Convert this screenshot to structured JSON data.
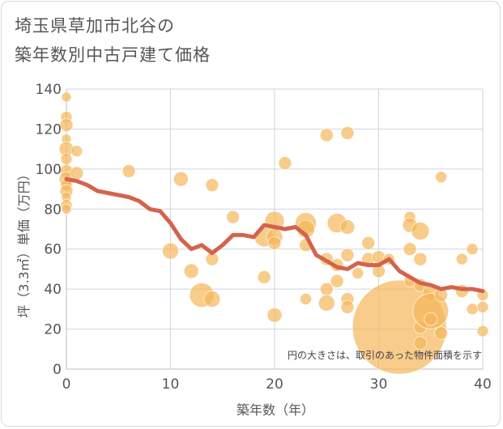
{
  "title_line1": "埼玉県草加市北谷の",
  "title_line2": "築年数別中古戸建て価格",
  "colors": {
    "bubble": "#f5b75a",
    "line": "#d4634c",
    "grid": "#ccd6e0",
    "text": "#555555"
  },
  "chart_data": {
    "type": "scatter",
    "title": "埼玉県草加市北谷の築年数別中古戸建て価格",
    "xlabel": "築年数（年）",
    "ylabel": "坪（3.3㎡）単価（万円）",
    "xlim": [
      0,
      40
    ],
    "ylim": [
      0,
      140
    ],
    "x_ticks": [
      0,
      10,
      20,
      30,
      40
    ],
    "y_ticks": [
      0,
      20,
      40,
      60,
      80,
      100,
      120,
      140
    ],
    "grid": true,
    "annotation": "円の大きさは、取引のあった物件面積を示す",
    "scatter_points": [
      {
        "x": 0,
        "y": 136,
        "size": 6
      },
      {
        "x": 0,
        "y": 126,
        "size": 7
      },
      {
        "x": 0,
        "y": 122,
        "size": 8
      },
      {
        "x": 0,
        "y": 115,
        "size": 6
      },
      {
        "x": 0,
        "y": 110,
        "size": 9
      },
      {
        "x": 0,
        "y": 105,
        "size": 7
      },
      {
        "x": 0,
        "y": 99,
        "size": 8
      },
      {
        "x": 0,
        "y": 95,
        "size": 9
      },
      {
        "x": 0,
        "y": 92,
        "size": 7
      },
      {
        "x": 0,
        "y": 89,
        "size": 8
      },
      {
        "x": 0,
        "y": 86,
        "size": 6
      },
      {
        "x": 0,
        "y": 82,
        "size": 7
      },
      {
        "x": 0,
        "y": 80,
        "size": 6
      },
      {
        "x": 1,
        "y": 109,
        "size": 7
      },
      {
        "x": 1,
        "y": 98,
        "size": 8
      },
      {
        "x": 6,
        "y": 99,
        "size": 8
      },
      {
        "x": 10,
        "y": 59,
        "size": 10
      },
      {
        "x": 11,
        "y": 95,
        "size": 9
      },
      {
        "x": 12,
        "y": 49,
        "size": 9
      },
      {
        "x": 13,
        "y": 37,
        "size": 15
      },
      {
        "x": 14,
        "y": 92,
        "size": 8
      },
      {
        "x": 14,
        "y": 55,
        "size": 8
      },
      {
        "x": 14,
        "y": 35,
        "size": 10
      },
      {
        "x": 16,
        "y": 76,
        "size": 8
      },
      {
        "x": 19,
        "y": 66,
        "size": 12
      },
      {
        "x": 19,
        "y": 46,
        "size": 8
      },
      {
        "x": 20,
        "y": 74,
        "size": 12
      },
      {
        "x": 20,
        "y": 66,
        "size": 10
      },
      {
        "x": 20,
        "y": 63,
        "size": 8
      },
      {
        "x": 20,
        "y": 27,
        "size": 9
      },
      {
        "x": 21,
        "y": 103,
        "size": 8
      },
      {
        "x": 23,
        "y": 73,
        "size": 13
      },
      {
        "x": 23,
        "y": 70,
        "size": 11
      },
      {
        "x": 23,
        "y": 62,
        "size": 8
      },
      {
        "x": 23,
        "y": 35,
        "size": 7
      },
      {
        "x": 25,
        "y": 117,
        "size": 8
      },
      {
        "x": 25,
        "y": 55,
        "size": 8
      },
      {
        "x": 25,
        "y": 40,
        "size": 8
      },
      {
        "x": 25,
        "y": 33,
        "size": 10
      },
      {
        "x": 26,
        "y": 73,
        "size": 12
      },
      {
        "x": 26,
        "y": 52,
        "size": 8
      },
      {
        "x": 26,
        "y": 44,
        "size": 8
      },
      {
        "x": 27,
        "y": 118,
        "size": 8
      },
      {
        "x": 27,
        "y": 71,
        "size": 9
      },
      {
        "x": 27,
        "y": 57,
        "size": 8
      },
      {
        "x": 27,
        "y": 35,
        "size": 8
      },
      {
        "x": 27,
        "y": 31,
        "size": 8
      },
      {
        "x": 28,
        "y": 48,
        "size": 7
      },
      {
        "x": 29,
        "y": 63,
        "size": 8
      },
      {
        "x": 29,
        "y": 55,
        "size": 8
      },
      {
        "x": 30,
        "y": 56,
        "size": 8
      },
      {
        "x": 30,
        "y": 49,
        "size": 8
      },
      {
        "x": 31,
        "y": 55,
        "size": 7
      },
      {
        "x": 32,
        "y": 21,
        "size": 58
      },
      {
        "x": 33,
        "y": 76,
        "size": 7
      },
      {
        "x": 33,
        "y": 72,
        "size": 9
      },
      {
        "x": 33,
        "y": 60,
        "size": 8
      },
      {
        "x": 33,
        "y": 44,
        "size": 7
      },
      {
        "x": 34,
        "y": 69,
        "size": 11
      },
      {
        "x": 34,
        "y": 55,
        "size": 8
      },
      {
        "x": 34,
        "y": 42,
        "size": 8
      },
      {
        "x": 34,
        "y": 21,
        "size": 8
      },
      {
        "x": 34,
        "y": 13,
        "size": 8
      },
      {
        "x": 35,
        "y": 38,
        "size": 10
      },
      {
        "x": 35,
        "y": 29,
        "size": 22
      },
      {
        "x": 35,
        "y": 25,
        "size": 8
      },
      {
        "x": 36,
        "y": 96,
        "size": 7
      },
      {
        "x": 36,
        "y": 37,
        "size": 8
      },
      {
        "x": 36,
        "y": 18,
        "size": 8
      },
      {
        "x": 38,
        "y": 55,
        "size": 7
      },
      {
        "x": 38,
        "y": 39,
        "size": 8
      },
      {
        "x": 39,
        "y": 60,
        "size": 7
      },
      {
        "x": 39,
        "y": 30,
        "size": 7
      },
      {
        "x": 40,
        "y": 37,
        "size": 7
      },
      {
        "x": 40,
        "y": 31,
        "size": 7
      },
      {
        "x": 40,
        "y": 19,
        "size": 7
      }
    ],
    "trend_line": {
      "x": [
        0,
        1,
        2,
        3,
        4,
        5,
        6,
        7,
        8,
        9,
        10,
        11,
        12,
        13,
        14,
        15,
        16,
        17,
        18,
        19,
        20,
        21,
        22,
        23,
        24,
        25,
        26,
        27,
        28,
        29,
        30,
        31,
        32,
        33,
        34,
        35,
        36,
        37,
        38,
        39,
        40
      ],
      "y": [
        95,
        94,
        92,
        89,
        88,
        87,
        86,
        84,
        80,
        79,
        73,
        65,
        60,
        62,
        58,
        62,
        67,
        67,
        66,
        72,
        71,
        70,
        71,
        67,
        57,
        54,
        51,
        50,
        53,
        52,
        52,
        55,
        49,
        46,
        43,
        42,
        40,
        41,
        40,
        40,
        39
      ]
    }
  }
}
